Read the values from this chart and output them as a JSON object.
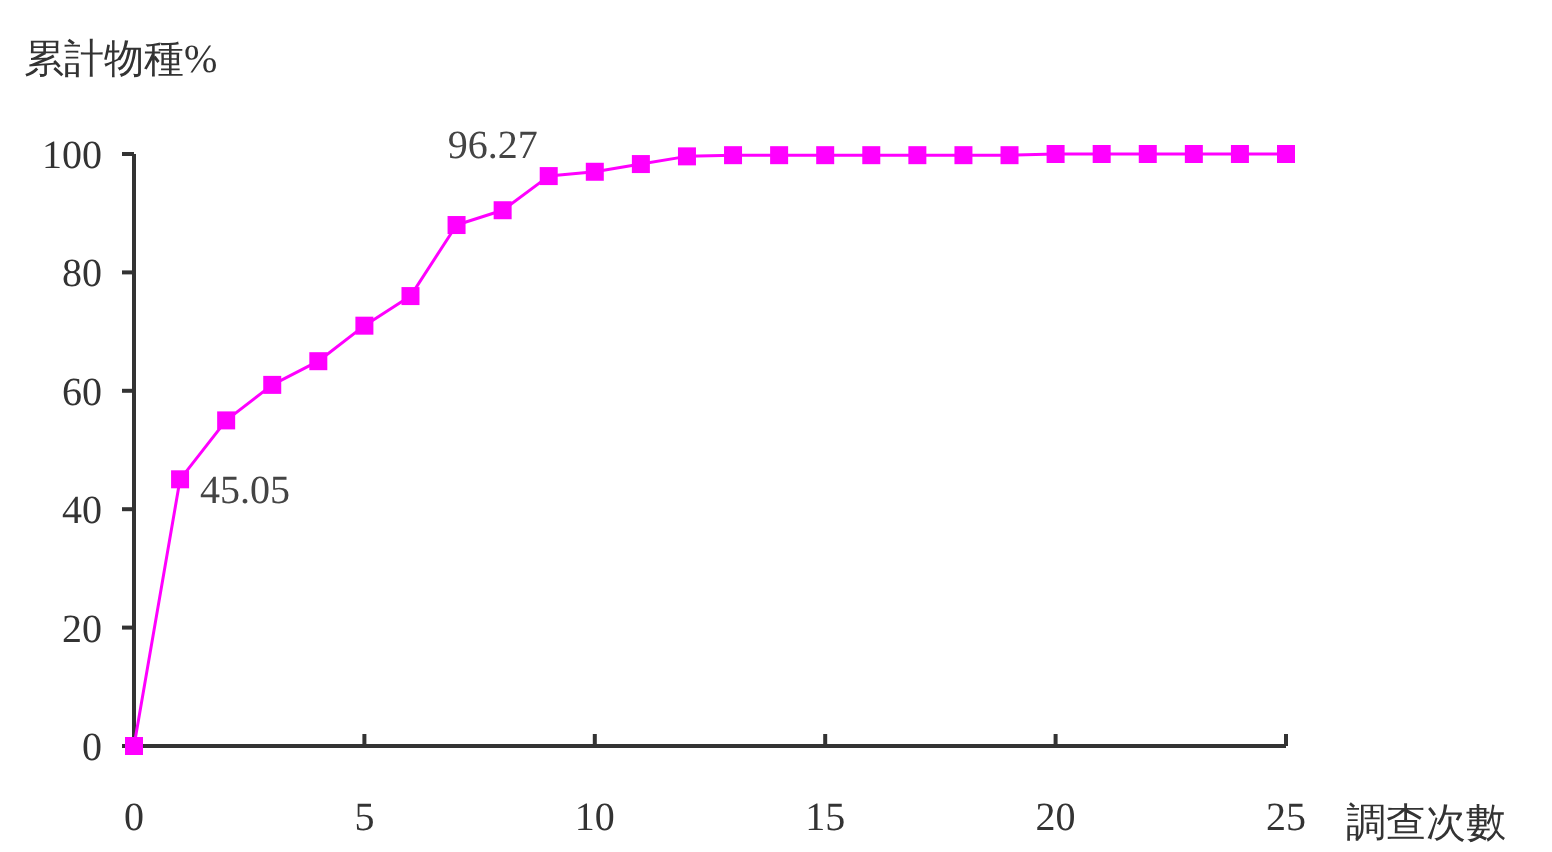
{
  "chart_data": {
    "type": "line",
    "xlabel": "調查次數",
    "ylabel": "累計物種%",
    "x": [
      0,
      1,
      2,
      3,
      4,
      5,
      6,
      7,
      8,
      9,
      10,
      11,
      12,
      13,
      14,
      15,
      16,
      17,
      18,
      19,
      20,
      21,
      22,
      23,
      24,
      25
    ],
    "series": [
      {
        "color": "#ff00ff",
        "values": [
          0,
          45.05,
          55,
          61,
          65,
          71,
          76,
          88,
          90.5,
          96.27,
          97,
          98.3,
          99.6,
          99.8,
          99.8,
          99.8,
          99.8,
          99.8,
          99.8,
          99.8,
          100,
          100,
          100,
          100,
          100,
          100
        ]
      }
    ],
    "xlim": [
      0,
      25
    ],
    "xticks": [
      0,
      5,
      10,
      15,
      20,
      25
    ],
    "ylim": [
      0,
      100
    ],
    "yticks": [
      0,
      20,
      40,
      60,
      80,
      100
    ],
    "grid": false,
    "marker": "square",
    "line_style": "solid",
    "annotations": [
      {
        "text": "45.05",
        "x": 1,
        "y": 45.05
      },
      {
        "text": "96.27",
        "x": 9,
        "y": 96.27
      }
    ]
  }
}
